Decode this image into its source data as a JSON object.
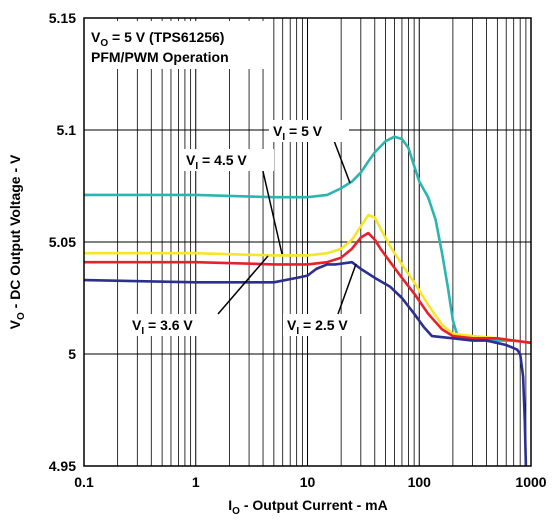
{
  "chart_data": {
    "type": "line",
    "title": "",
    "notes": [
      "V_O = 5 V (TPS61256)",
      "PFM/PWM Operation"
    ],
    "xlabel": "I_O - Output Current - mA",
    "ylabel": "V_O - DC Output Voltage - V",
    "xscale": "log",
    "xlim": [
      0.1,
      1000
    ],
    "ylim": [
      4.95,
      5.15
    ],
    "grid": true,
    "x_ticks": [
      "0.1",
      "1",
      "10",
      "100",
      "1000"
    ],
    "y_ticks": [
      "4.95",
      "5",
      "5.05",
      "5.1",
      "5.15"
    ],
    "series": [
      {
        "name": "V_I = 5 V",
        "color": "#2bb5b0",
        "points": [
          [
            0.1,
            5.071
          ],
          [
            1,
            5.071
          ],
          [
            5,
            5.07
          ],
          [
            10,
            5.07
          ],
          [
            15,
            5.071
          ],
          [
            20,
            5.074
          ],
          [
            25,
            5.077
          ],
          [
            30,
            5.081
          ],
          [
            35,
            5.086
          ],
          [
            40,
            5.09
          ],
          [
            50,
            5.095
          ],
          [
            60,
            5.097
          ],
          [
            70,
            5.096
          ],
          [
            80,
            5.092
          ],
          [
            90,
            5.084
          ],
          [
            100,
            5.077
          ],
          [
            120,
            5.07
          ],
          [
            140,
            5.06
          ],
          [
            160,
            5.045
          ],
          [
            180,
            5.03
          ],
          [
            200,
            5.015
          ],
          [
            220,
            5.008
          ],
          [
            300,
            5.007
          ],
          [
            500,
            5.006
          ],
          [
            700,
            5.006
          ],
          [
            1000,
            5.005
          ]
        ]
      },
      {
        "name": "V_I = 4.5 V",
        "color": "#f7e52a",
        "points": [
          [
            0.1,
            5.045
          ],
          [
            1,
            5.045
          ],
          [
            5,
            5.044
          ],
          [
            10,
            5.044
          ],
          [
            15,
            5.045
          ],
          [
            20,
            5.047
          ],
          [
            25,
            5.051
          ],
          [
            30,
            5.057
          ],
          [
            35,
            5.062
          ],
          [
            40,
            5.061
          ],
          [
            45,
            5.056
          ],
          [
            55,
            5.048
          ],
          [
            70,
            5.04
          ],
          [
            90,
            5.032
          ],
          [
            120,
            5.022
          ],
          [
            160,
            5.013
          ],
          [
            200,
            5.009
          ],
          [
            300,
            5.008
          ],
          [
            500,
            5.007
          ],
          [
            700,
            5.006
          ],
          [
            1000,
            5.005
          ]
        ]
      },
      {
        "name": "",
        "color": "#e8202a",
        "points": [
          [
            0.1,
            5.041
          ],
          [
            1,
            5.041
          ],
          [
            5,
            5.04
          ],
          [
            10,
            5.04
          ],
          [
            15,
            5.041
          ],
          [
            20,
            5.043
          ],
          [
            25,
            5.047
          ],
          [
            30,
            5.052
          ],
          [
            35,
            5.054
          ],
          [
            40,
            5.051
          ],
          [
            45,
            5.047
          ],
          [
            55,
            5.041
          ],
          [
            70,
            5.034
          ],
          [
            90,
            5.027
          ],
          [
            120,
            5.018
          ],
          [
            160,
            5.011
          ],
          [
            200,
            5.008
          ],
          [
            300,
            5.007
          ],
          [
            500,
            5.007
          ],
          [
            700,
            5.006
          ],
          [
            1000,
            5.005
          ]
        ]
      },
      {
        "name": "V_I = 3.6 V",
        "color": "#2b2f8f",
        "points": [
          [
            0.1,
            5.033
          ],
          [
            1,
            5.032
          ],
          [
            3,
            5.032
          ],
          [
            5,
            5.032
          ],
          [
            8,
            5.034
          ],
          [
            10,
            5.035
          ],
          [
            12,
            5.038
          ],
          [
            15,
            5.04
          ],
          [
            18,
            5.04
          ],
          [
            25,
            5.041
          ],
          [
            30,
            5.038
          ],
          [
            40,
            5.034
          ],
          [
            55,
            5.03
          ],
          [
            70,
            5.025
          ],
          [
            90,
            5.018
          ],
          [
            110,
            5.012
          ],
          [
            130,
            5.008
          ],
          [
            200,
            5.007
          ],
          [
            300,
            5.006
          ],
          [
            400,
            5.006
          ],
          [
            600,
            5.004
          ],
          [
            750,
            5.002
          ],
          [
            800,
            5.0
          ],
          [
            850,
            4.99
          ],
          [
            880,
            4.97
          ],
          [
            900,
            4.95
          ]
        ]
      }
    ],
    "annotations": [
      "V_I = 2.5 V"
    ]
  }
}
